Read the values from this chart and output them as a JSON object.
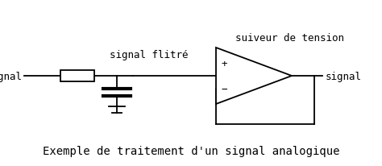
{
  "bg_color": "#ffffff",
  "line_color": "#000000",
  "title": "Exemple de traitement d'un signal analogique",
  "title_fontsize": 10,
  "label_signal_in": "signal",
  "label_signal_filtered": "signal flitré",
  "label_follower": "suiveur de tension",
  "label_signal_out": "signal",
  "font_family": "monospace"
}
